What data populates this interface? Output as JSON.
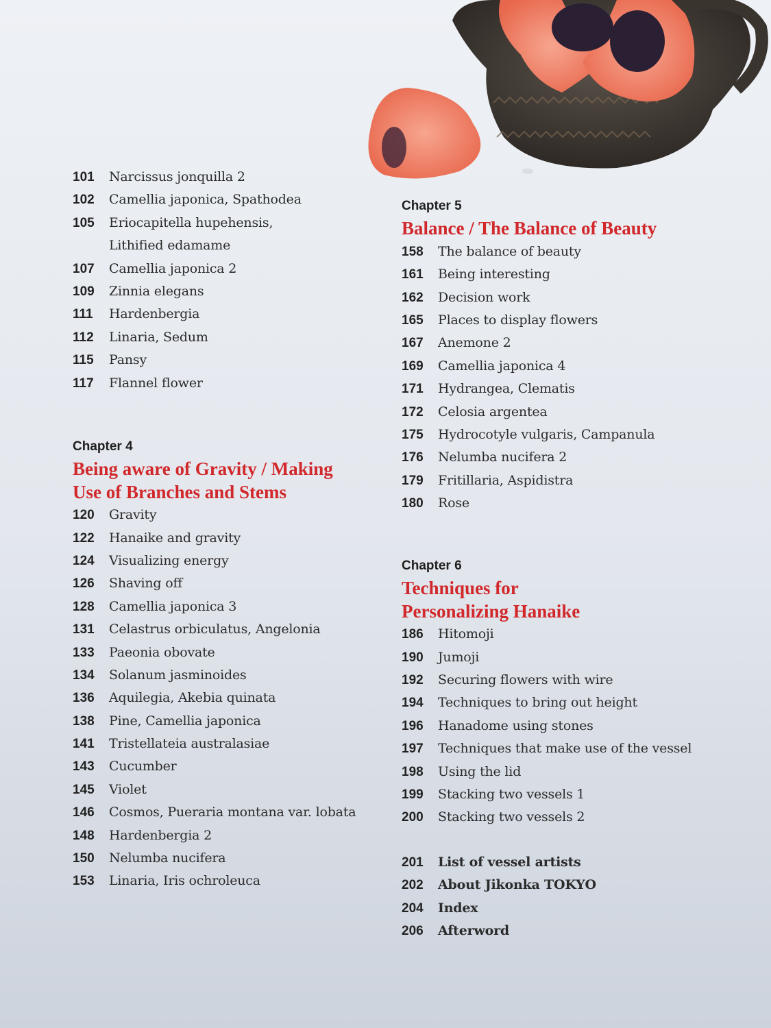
{
  "colors": {
    "heading": "#d1282b",
    "text": "#2b2b2b",
    "background": "#e6eaf0"
  },
  "photo": {
    "description_icon": "poppy-in-clay-pot-photo"
  },
  "left_top": {
    "entries": [
      {
        "page": "101",
        "title": "Narcissus jonquilla 2"
      },
      {
        "page": "102",
        "title": "Camellia japonica, Spathodea"
      },
      {
        "page": "105",
        "title": "Eriocapitella hupehensis,"
      },
      {
        "page": "",
        "title": "Lithified edamame"
      },
      {
        "page": "107",
        "title": "Camellia japonica 2"
      },
      {
        "page": "109",
        "title": "Zinnia elegans"
      },
      {
        "page": "111",
        "title": "Hardenbergia"
      },
      {
        "page": "112",
        "title": "Linaria, Sedum"
      },
      {
        "page": "115",
        "title": "Pansy"
      },
      {
        "page": "117",
        "title": "Flannel flower"
      }
    ]
  },
  "chapter4": {
    "label": "Chapter 4",
    "heading": [
      "Being aware of Gravity / Making",
      "Use of Branches and Stems"
    ],
    "entries": [
      {
        "page": "120",
        "title": "Gravity"
      },
      {
        "page": "122",
        "title": "Hanaike and gravity"
      },
      {
        "page": "124",
        "title": "Visualizing energy"
      },
      {
        "page": "126",
        "title": "Shaving off"
      },
      {
        "page": "128",
        "title": "Camellia japonica 3"
      },
      {
        "page": "131",
        "title": "Celastrus orbiculatus, Angelonia"
      },
      {
        "page": "133",
        "title": "Paeonia obovate"
      },
      {
        "page": "134",
        "title": "Solanum jasminoides"
      },
      {
        "page": "136",
        "title": "Aquilegia, Akebia quinata"
      },
      {
        "page": "138",
        "title": "Pine, Camellia japonica"
      },
      {
        "page": "141",
        "title": "Tristellateia australasiae"
      },
      {
        "page": "143",
        "title": "Cucumber"
      },
      {
        "page": "145",
        "title": "Violet"
      },
      {
        "page": "146",
        "title": "Cosmos, Pueraria montana var. lobata"
      },
      {
        "page": "148",
        "title": "Hardenbergia 2"
      },
      {
        "page": "150",
        "title": "Nelumba nucifera"
      },
      {
        "page": "153",
        "title": "Linaria, Iris ochroleuca"
      }
    ]
  },
  "chapter5": {
    "label": "Chapter 5",
    "heading": [
      "Balance / The Balance of Beauty"
    ],
    "entries": [
      {
        "page": "158",
        "title": "The balance of beauty"
      },
      {
        "page": "161",
        "title": "Being interesting"
      },
      {
        "page": "162",
        "title": "Decision work"
      },
      {
        "page": "165",
        "title": "Places to display flowers"
      },
      {
        "page": "167",
        "title": "Anemone 2"
      },
      {
        "page": "169",
        "title": "Camellia japonica 4"
      },
      {
        "page": "171",
        "title": "Hydrangea, Clematis"
      },
      {
        "page": "172",
        "title": "Celosia argentea"
      },
      {
        "page": "175",
        "title": "Hydrocotyle vulgaris, Campanula"
      },
      {
        "page": "176",
        "title": "Nelumba nucifera 2"
      },
      {
        "page": "179",
        "title": "Fritillaria, Aspidistra"
      },
      {
        "page": "180",
        "title": "Rose"
      }
    ]
  },
  "chapter6": {
    "label": "Chapter 6",
    "heading": [
      "Techniques for",
      "Personalizing Hanaike"
    ],
    "entries": [
      {
        "page": "186",
        "title": "Hitomoji"
      },
      {
        "page": "190",
        "title": "Jumoji"
      },
      {
        "page": "192",
        "title": "Securing flowers with wire"
      },
      {
        "page": "194",
        "title": "Techniques to bring out height"
      },
      {
        "page": "196",
        "title": "Hanadome using stones"
      },
      {
        "page": "197",
        "title": "Techniques that make use of the vessel"
      },
      {
        "page": "198",
        "title": "Using the lid"
      },
      {
        "page": "199",
        "title": "Stacking two vessels 1"
      },
      {
        "page": "200",
        "title": "Stacking two vessels 2"
      }
    ]
  },
  "back_matter": {
    "entries": [
      {
        "page": "201",
        "title": "List of vessel artists"
      },
      {
        "page": "202",
        "title": "About Jikonka TOKYO"
      },
      {
        "page": "204",
        "title": "Index"
      },
      {
        "page": "206",
        "title": "Afterword"
      }
    ]
  }
}
